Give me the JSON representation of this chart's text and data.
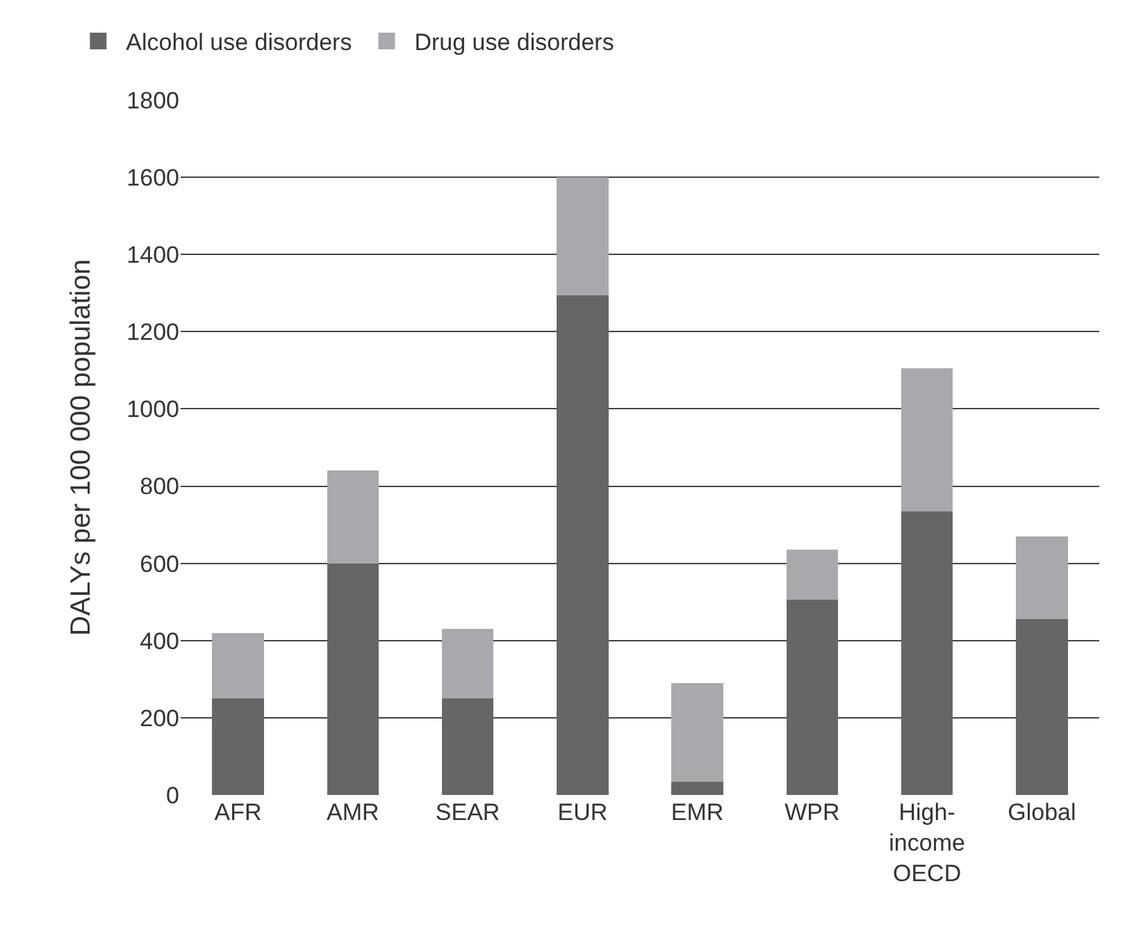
{
  "chart_data": {
    "type": "bar",
    "stacked": true,
    "ylabel": "DALYs per 100 000 population",
    "categories": [
      "AFR",
      "AMR",
      "SEAR",
      "EUR",
      "EMR",
      "WPR",
      "High-income OECD",
      "Global"
    ],
    "series": [
      {
        "name": "Alcohol use disorders",
        "color": "#666666",
        "values": [
          250,
          600,
          250,
          1295,
          35,
          505,
          735,
          455
        ]
      },
      {
        "name": "Drug use disorders",
        "color": "#a7a9ac",
        "values": [
          170,
          240,
          180,
          305,
          255,
          130,
          370,
          215
        ]
      }
    ],
    "ylim": [
      0,
      1800
    ],
    "yticks": [
      0,
      200,
      400,
      600,
      800,
      1000,
      1200,
      1400,
      1600,
      1800
    ],
    "grid": "y",
    "legend": "top left"
  }
}
